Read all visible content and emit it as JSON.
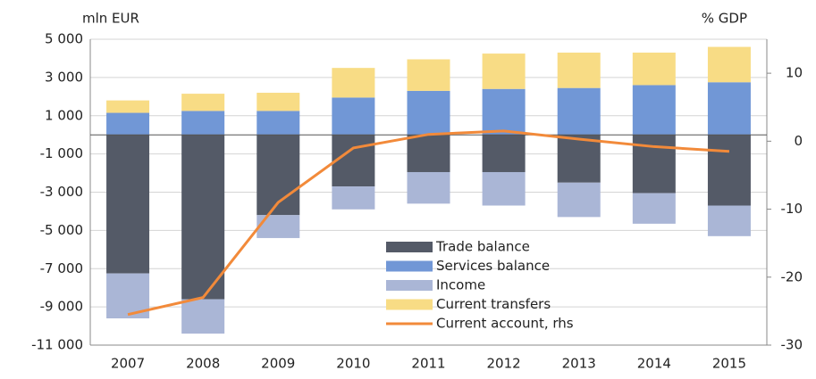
{
  "chart_data": {
    "type": "bar",
    "y_label": "mln EUR",
    "y2_label": "% GDP",
    "categories": [
      "2007",
      "2008",
      "2009",
      "2010",
      "2011",
      "2012",
      "2013",
      "2014",
      "2015"
    ],
    "series": [
      {
        "name": "Trade balance",
        "color": "#545a67",
        "values": [
          -7250,
          -8600,
          -4200,
          -2700,
          -1950,
          -1950,
          -2500,
          -3050,
          -3700
        ]
      },
      {
        "name": "Services balance",
        "color": "#7197d6",
        "values": [
          1150,
          1250,
          1250,
          1950,
          2300,
          2400,
          2450,
          2600,
          2750
        ]
      },
      {
        "name": "Income",
        "color": "#aab6d6",
        "values": [
          -2350,
          -1800,
          -1200,
          -1200,
          -1650,
          -1750,
          -1800,
          -1600,
          -1600
        ]
      },
      {
        "name": "Current transfers",
        "color": "#f8dc85",
        "values": [
          650,
          900,
          950,
          1550,
          1650,
          1850,
          1850,
          1700,
          1850
        ]
      },
      {
        "name": "Current account, rhs",
        "color": "#f28a3a",
        "type": "line",
        "axis": "y2",
        "values": [
          -25.5,
          -23,
          -9,
          -1,
          1,
          1.5,
          0.3,
          -0.8,
          -1.5
        ]
      }
    ],
    "ylim": [
      -11000,
      5000
    ],
    "yticks": [
      {
        "value": -11000,
        "label": "-11 000"
      },
      {
        "value": -9000,
        "label": "-9 000"
      },
      {
        "value": -7000,
        "label": "-7 000"
      },
      {
        "value": -5000,
        "label": "-5 000"
      },
      {
        "value": -3000,
        "label": "-3 000"
      },
      {
        "value": -1000,
        "label": "-1 000"
      },
      {
        "value": 1000,
        "label": "1 000"
      },
      {
        "value": 3000,
        "label": "3 000"
      },
      {
        "value": 5000,
        "label": "5 000"
      }
    ],
    "y2lim": [
      -30,
      15
    ],
    "y2ticks": [
      -30,
      -20,
      -10,
      0,
      10
    ],
    "grid": true
  }
}
